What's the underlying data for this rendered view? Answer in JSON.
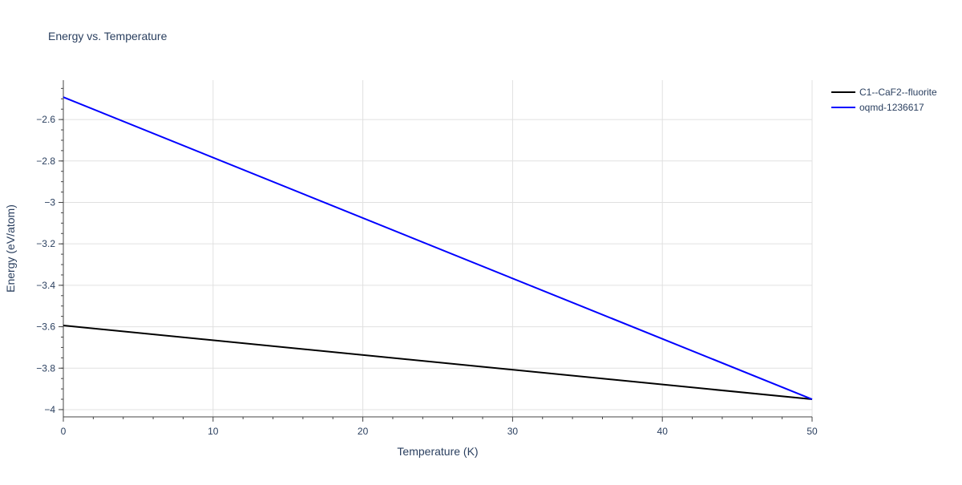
{
  "chart_data": {
    "type": "line",
    "title": "Energy vs. Temperature",
    "xlabel": "Temperature (K)",
    "ylabel": "Energy (eV/atom)",
    "xlim": [
      0,
      50
    ],
    "ylim": [
      -4.035,
      -2.41
    ],
    "xticks": [
      0,
      10,
      20,
      30,
      40,
      50
    ],
    "xtick_labels": [
      "0",
      "10",
      "20",
      "30",
      "40",
      "50"
    ],
    "yticks": [
      -2.6,
      -2.8,
      -3,
      -3.2,
      -3.4,
      -3.6,
      -3.8,
      -4
    ],
    "ytick_labels": [
      "−2.6",
      "−2.8",
      "−3",
      "−3.2",
      "−3.4",
      "−3.6",
      "−3.8",
      "−4"
    ],
    "grid": true,
    "legend_position": "top-right",
    "series": [
      {
        "name": "C1--CaF2--fluorite",
        "color": "#000000",
        "x": [
          0,
          50
        ],
        "y": [
          -3.594,
          -3.95
        ]
      },
      {
        "name": "oqmd-1236617",
        "color": "#0000ff",
        "x": [
          0,
          50
        ],
        "y": [
          -2.492,
          -3.95
        ]
      }
    ]
  }
}
